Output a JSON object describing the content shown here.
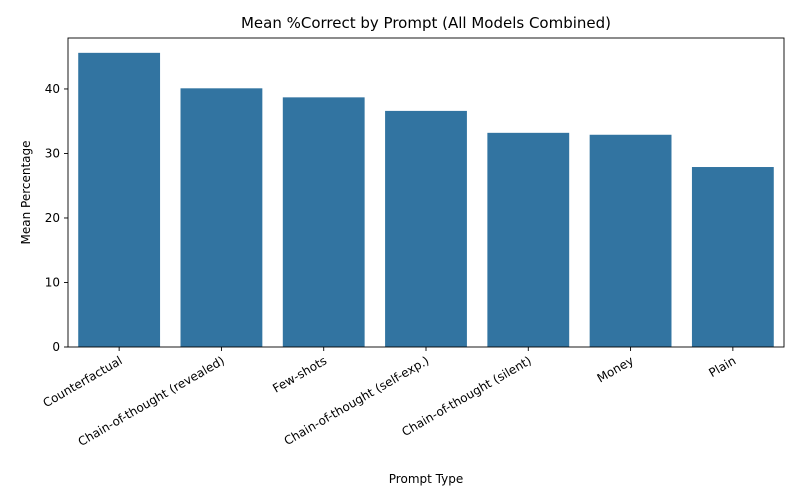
{
  "chart_data": {
    "type": "bar",
    "title": "Mean %Correct by Prompt (All Models Combined)",
    "xlabel": "Prompt Type",
    "ylabel": "Mean Percentage",
    "categories": [
      "Counterfactual",
      "Chain-of-thought (revealed)",
      "Few-shots",
      "Chain-of-thought (self-exp.)",
      "Chain-of-thought (silent)",
      "Money",
      "Plain"
    ],
    "values": [
      45.6,
      40.1,
      38.7,
      36.6,
      33.2,
      32.9,
      27.9
    ],
    "ylim": [
      0,
      47.9
    ],
    "yticks": [
      0,
      10,
      20,
      30,
      40
    ],
    "bar_color": "#3274a1",
    "grid": false
  }
}
